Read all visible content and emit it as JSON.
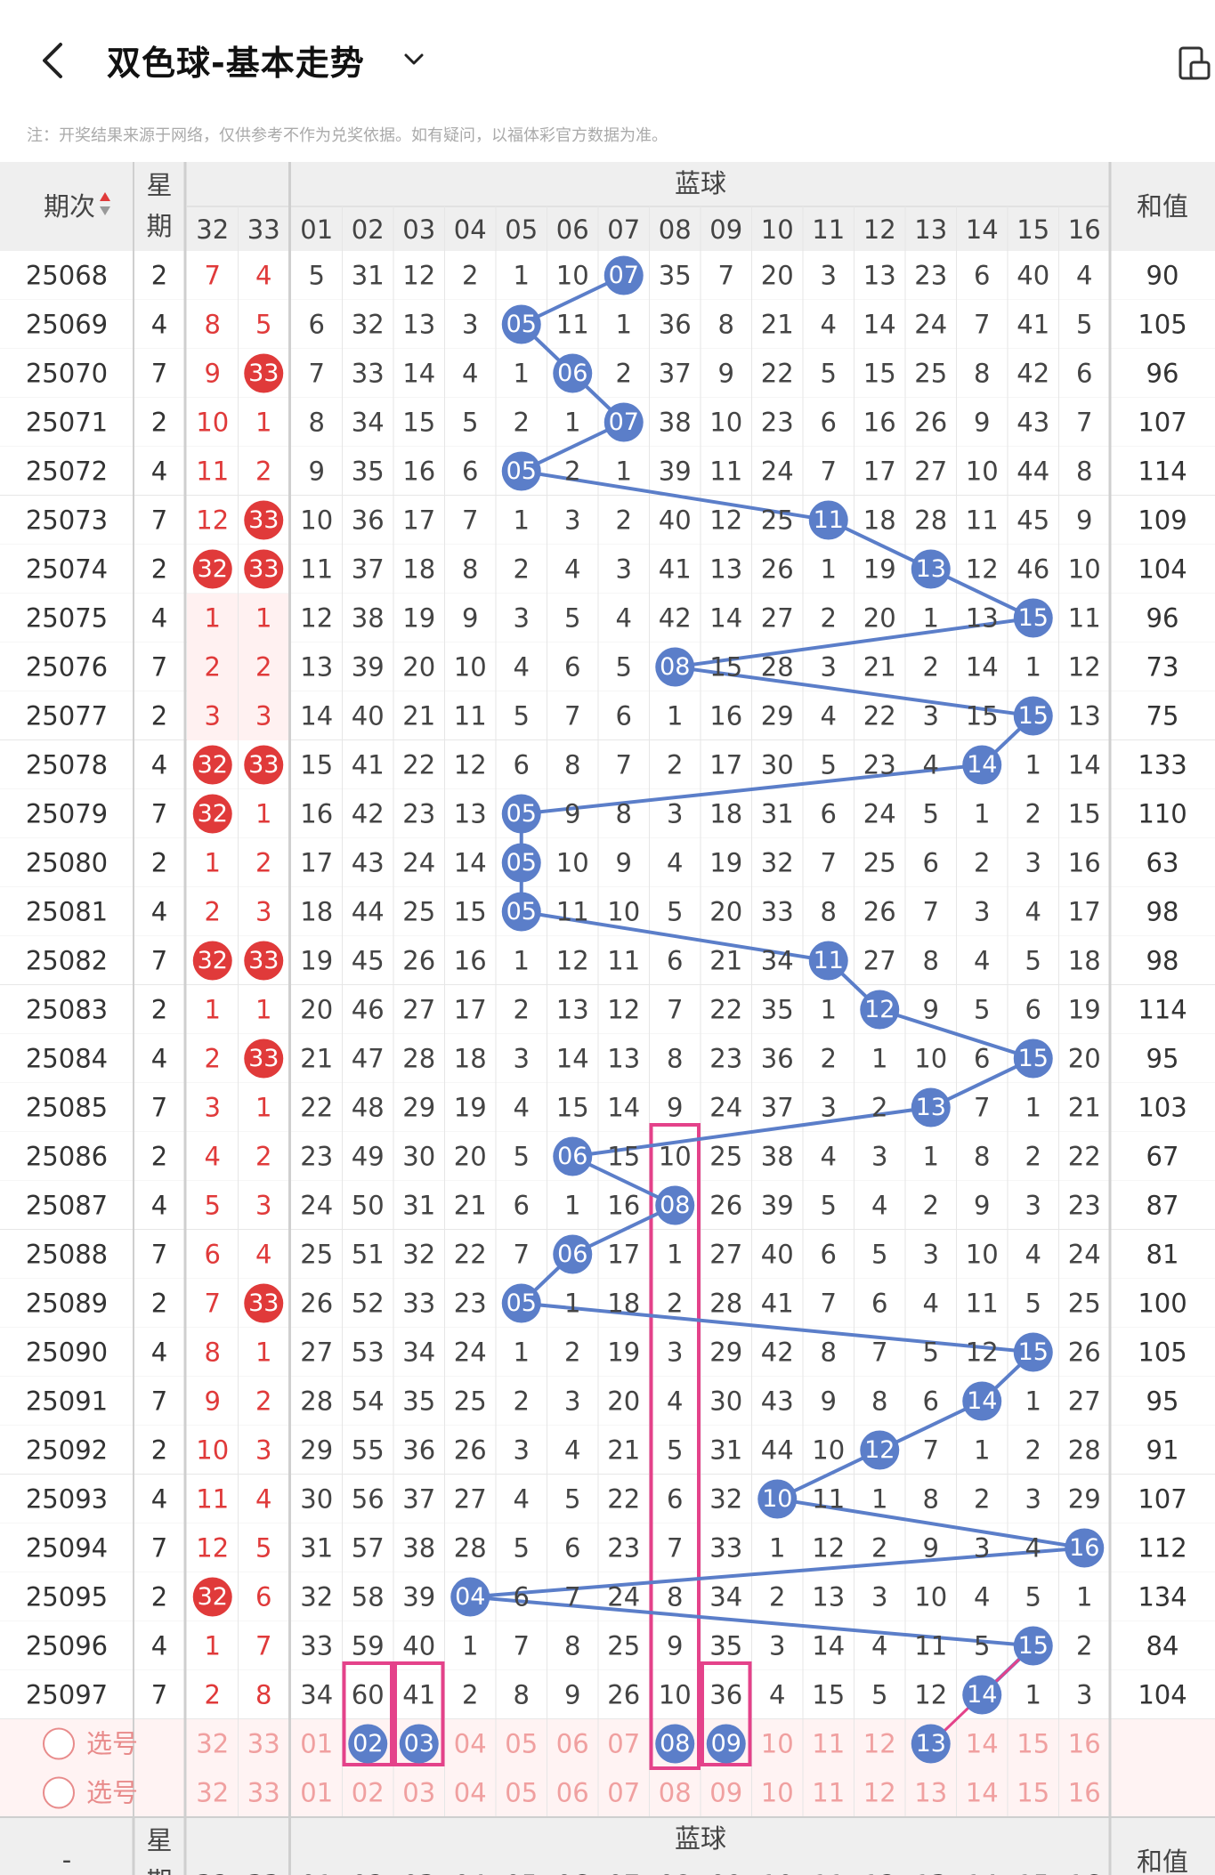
{
  "header": {
    "title": "双色球-基本走势",
    "notice": "注：开奖结果来源于网络，仅供参考不作为兑奖依据。如有疑问，以福体彩官方数据为准。"
  },
  "table": {
    "col_period": "期次",
    "col_weekday": "星期",
    "col_blue": "蓝球",
    "col_sum": "和值",
    "red_cols": [
      "32",
      "33"
    ],
    "blue_cols": [
      "01",
      "02",
      "03",
      "04",
      "05",
      "06",
      "07",
      "08",
      "09",
      "10",
      "11",
      "12",
      "13",
      "14",
      "15",
      "16"
    ],
    "rows": [
      {
        "period": "25068",
        "weekday": "2",
        "r": [
          "7",
          "4"
        ],
        "hr": [
          false,
          false
        ],
        "b": [
          "5",
          "31",
          "12",
          "2",
          "1",
          "10",
          "07",
          "35",
          "7",
          "20",
          "3",
          "13",
          "23",
          "6",
          "40",
          "4"
        ],
        "hit": 7,
        "sum": "90"
      },
      {
        "period": "25069",
        "weekday": "4",
        "r": [
          "8",
          "5"
        ],
        "hr": [
          false,
          false
        ],
        "b": [
          "6",
          "32",
          "13",
          "3",
          "05",
          "11",
          "1",
          "36",
          "8",
          "21",
          "4",
          "14",
          "24",
          "7",
          "41",
          "5"
        ],
        "hit": 5,
        "sum": "105"
      },
      {
        "period": "25070",
        "weekday": "7",
        "r": [
          "9",
          "33"
        ],
        "hr": [
          false,
          true
        ],
        "b": [
          "7",
          "33",
          "14",
          "4",
          "1",
          "06",
          "2",
          "37",
          "9",
          "22",
          "5",
          "15",
          "25",
          "8",
          "42",
          "6"
        ],
        "hit": 6,
        "sum": "96"
      },
      {
        "period": "25071",
        "weekday": "2",
        "r": [
          "10",
          "1"
        ],
        "hr": [
          false,
          false
        ],
        "b": [
          "8",
          "34",
          "15",
          "5",
          "2",
          "1",
          "07",
          "38",
          "10",
          "23",
          "6",
          "16",
          "26",
          "9",
          "43",
          "7"
        ],
        "hit": 7,
        "sum": "107"
      },
      {
        "period": "25072",
        "weekday": "4",
        "r": [
          "11",
          "2"
        ],
        "hr": [
          false,
          false
        ],
        "b": [
          "9",
          "35",
          "16",
          "6",
          "05",
          "2",
          "1",
          "39",
          "11",
          "24",
          "7",
          "17",
          "27",
          "10",
          "44",
          "8"
        ],
        "hit": 5,
        "sum": "114"
      },
      {
        "period": "25073",
        "weekday": "7",
        "r": [
          "12",
          "33"
        ],
        "hr": [
          false,
          true
        ],
        "b": [
          "10",
          "36",
          "17",
          "7",
          "1",
          "3",
          "2",
          "40",
          "12",
          "25",
          "11",
          "18",
          "28",
          "11",
          "45",
          "9"
        ],
        "hit": 11,
        "sum": "109"
      },
      {
        "period": "25074",
        "weekday": "2",
        "r": [
          "32",
          "33"
        ],
        "hr": [
          true,
          true
        ],
        "b": [
          "11",
          "37",
          "18",
          "8",
          "2",
          "4",
          "3",
          "41",
          "13",
          "26",
          "1",
          "19",
          "13",
          "12",
          "46",
          "10"
        ],
        "hit": 13,
        "sum": "104"
      },
      {
        "period": "25075",
        "weekday": "4",
        "r": [
          "1",
          "1"
        ],
        "hr": [
          false,
          false
        ],
        "b": [
          "12",
          "38",
          "19",
          "9",
          "3",
          "5",
          "4",
          "42",
          "14",
          "27",
          "2",
          "20",
          "1",
          "13",
          "15",
          "11"
        ],
        "hit": 15,
        "sum": "96"
      },
      {
        "period": "25076",
        "weekday": "7",
        "r": [
          "2",
          "2"
        ],
        "hr": [
          false,
          false
        ],
        "b": [
          "13",
          "39",
          "20",
          "10",
          "4",
          "6",
          "5",
          "08",
          "15",
          "28",
          "3",
          "21",
          "2",
          "14",
          "1",
          "12"
        ],
        "hit": 8,
        "sum": "73"
      },
      {
        "period": "25077",
        "weekday": "2",
        "r": [
          "3",
          "3"
        ],
        "hr": [
          false,
          false
        ],
        "b": [
          "14",
          "40",
          "21",
          "11",
          "5",
          "7",
          "6",
          "1",
          "16",
          "29",
          "4",
          "22",
          "3",
          "15",
          "15",
          "13"
        ],
        "hit": 15,
        "sum": "75"
      },
      {
        "period": "25078",
        "weekday": "4",
        "r": [
          "32",
          "33"
        ],
        "hr": [
          true,
          true
        ],
        "b": [
          "15",
          "41",
          "22",
          "12",
          "6",
          "8",
          "7",
          "2",
          "17",
          "30",
          "5",
          "23",
          "4",
          "14",
          "1",
          "14"
        ],
        "hit": 14,
        "sum": "133"
      },
      {
        "period": "25079",
        "weekday": "7",
        "r": [
          "32",
          "1"
        ],
        "hr": [
          true,
          false
        ],
        "b": [
          "16",
          "42",
          "23",
          "13",
          "05",
          "9",
          "8",
          "3",
          "18",
          "31",
          "6",
          "24",
          "5",
          "1",
          "2",
          "15"
        ],
        "hit": 5,
        "sum": "110"
      },
      {
        "period": "25080",
        "weekday": "2",
        "r": [
          "1",
          "2"
        ],
        "hr": [
          false,
          false
        ],
        "b": [
          "17",
          "43",
          "24",
          "14",
          "05",
          "10",
          "9",
          "4",
          "19",
          "32",
          "7",
          "25",
          "6",
          "2",
          "3",
          "16"
        ],
        "hit": 5,
        "sum": "63"
      },
      {
        "period": "25081",
        "weekday": "4",
        "r": [
          "2",
          "3"
        ],
        "hr": [
          false,
          false
        ],
        "b": [
          "18",
          "44",
          "25",
          "15",
          "05",
          "11",
          "10",
          "5",
          "20",
          "33",
          "8",
          "26",
          "7",
          "3",
          "4",
          "17"
        ],
        "hit": 5,
        "sum": "98"
      },
      {
        "period": "25082",
        "weekday": "7",
        "r": [
          "32",
          "33"
        ],
        "hr": [
          true,
          true
        ],
        "b": [
          "19",
          "45",
          "26",
          "16",
          "1",
          "12",
          "11",
          "6",
          "21",
          "34",
          "11",
          "27",
          "8",
          "4",
          "5",
          "18"
        ],
        "hit": 11,
        "sum": "98"
      },
      {
        "period": "25083",
        "weekday": "2",
        "r": [
          "1",
          "1"
        ],
        "hr": [
          false,
          false
        ],
        "b": [
          "20",
          "46",
          "27",
          "17",
          "2",
          "13",
          "12",
          "7",
          "22",
          "35",
          "1",
          "12",
          "9",
          "5",
          "6",
          "19"
        ],
        "hit": 12,
        "sum": "114"
      },
      {
        "period": "25084",
        "weekday": "4",
        "r": [
          "2",
          "33"
        ],
        "hr": [
          false,
          true
        ],
        "b": [
          "21",
          "47",
          "28",
          "18",
          "3",
          "14",
          "13",
          "8",
          "23",
          "36",
          "2",
          "1",
          "10",
          "6",
          "15",
          "20"
        ],
        "hit": 15,
        "sum": "95"
      },
      {
        "period": "25085",
        "weekday": "7",
        "r": [
          "3",
          "1"
        ],
        "hr": [
          false,
          false
        ],
        "b": [
          "22",
          "48",
          "29",
          "19",
          "4",
          "15",
          "14",
          "9",
          "24",
          "37",
          "3",
          "2",
          "13",
          "7",
          "1",
          "21"
        ],
        "hit": 13,
        "sum": "103"
      },
      {
        "period": "25086",
        "weekday": "2",
        "r": [
          "4",
          "2"
        ],
        "hr": [
          false,
          false
        ],
        "b": [
          "23",
          "49",
          "30",
          "20",
          "5",
          "06",
          "15",
          "10",
          "25",
          "38",
          "4",
          "3",
          "1",
          "8",
          "2",
          "22"
        ],
        "hit": 6,
        "sum": "67"
      },
      {
        "period": "25087",
        "weekday": "4",
        "r": [
          "5",
          "3"
        ],
        "hr": [
          false,
          false
        ],
        "b": [
          "24",
          "50",
          "31",
          "21",
          "6",
          "1",
          "16",
          "08",
          "26",
          "39",
          "5",
          "4",
          "2",
          "9",
          "3",
          "23"
        ],
        "hit": 8,
        "sum": "87"
      },
      {
        "period": "25088",
        "weekday": "7",
        "r": [
          "6",
          "4"
        ],
        "hr": [
          false,
          false
        ],
        "b": [
          "25",
          "51",
          "32",
          "22",
          "7",
          "06",
          "17",
          "1",
          "27",
          "40",
          "6",
          "5",
          "3",
          "10",
          "4",
          "24"
        ],
        "hit": 6,
        "sum": "81"
      },
      {
        "period": "25089",
        "weekday": "2",
        "r": [
          "7",
          "33"
        ],
        "hr": [
          false,
          true
        ],
        "b": [
          "26",
          "52",
          "33",
          "23",
          "05",
          "1",
          "18",
          "2",
          "28",
          "41",
          "7",
          "6",
          "4",
          "11",
          "5",
          "25"
        ],
        "hit": 5,
        "sum": "100"
      },
      {
        "period": "25090",
        "weekday": "4",
        "r": [
          "8",
          "1"
        ],
        "hr": [
          false,
          false
        ],
        "b": [
          "27",
          "53",
          "34",
          "24",
          "1",
          "2",
          "19",
          "3",
          "29",
          "42",
          "8",
          "7",
          "5",
          "12",
          "15",
          "26"
        ],
        "hit": 15,
        "sum": "105"
      },
      {
        "period": "25091",
        "weekday": "7",
        "r": [
          "9",
          "2"
        ],
        "hr": [
          false,
          false
        ],
        "b": [
          "28",
          "54",
          "35",
          "25",
          "2",
          "3",
          "20",
          "4",
          "30",
          "43",
          "9",
          "8",
          "6",
          "14",
          "1",
          "27"
        ],
        "hit": 14,
        "sum": "95"
      },
      {
        "period": "25092",
        "weekday": "2",
        "r": [
          "10",
          "3"
        ],
        "hr": [
          false,
          false
        ],
        "b": [
          "29",
          "55",
          "36",
          "26",
          "3",
          "4",
          "21",
          "5",
          "31",
          "44",
          "10",
          "12",
          "7",
          "1",
          "2",
          "28"
        ],
        "hit": 12,
        "sum": "91"
      },
      {
        "period": "25093",
        "weekday": "4",
        "r": [
          "11",
          "4"
        ],
        "hr": [
          false,
          false
        ],
        "b": [
          "30",
          "56",
          "37",
          "27",
          "4",
          "5",
          "22",
          "6",
          "32",
          "10",
          "11",
          "1",
          "8",
          "2",
          "3",
          "29"
        ],
        "hit": 10,
        "sum": "107"
      },
      {
        "period": "25094",
        "weekday": "7",
        "r": [
          "12",
          "5"
        ],
        "hr": [
          false,
          false
        ],
        "b": [
          "31",
          "57",
          "38",
          "28",
          "5",
          "6",
          "23",
          "7",
          "33",
          "1",
          "12",
          "2",
          "9",
          "3",
          "4",
          "16"
        ],
        "hit": 16,
        "sum": "112"
      },
      {
        "period": "25095",
        "weekday": "2",
        "r": [
          "32",
          "6"
        ],
        "hr": [
          true,
          false
        ],
        "b": [
          "32",
          "58",
          "39",
          "04",
          "6",
          "7",
          "24",
          "8",
          "34",
          "2",
          "13",
          "3",
          "10",
          "4",
          "5",
          "1"
        ],
        "hit": 4,
        "sum": "134"
      },
      {
        "period": "25096",
        "weekday": "4",
        "r": [
          "1",
          "7"
        ],
        "hr": [
          false,
          false
        ],
        "b": [
          "33",
          "59",
          "40",
          "1",
          "7",
          "8",
          "25",
          "9",
          "35",
          "3",
          "14",
          "4",
          "11",
          "5",
          "15",
          "2"
        ],
        "hit": 15,
        "sum": "84"
      },
      {
        "period": "25097",
        "weekday": "7",
        "r": [
          "2",
          "8"
        ],
        "hr": [
          false,
          false
        ],
        "b": [
          "34",
          "60",
          "41",
          "2",
          "8",
          "9",
          "26",
          "10",
          "36",
          "4",
          "15",
          "5",
          "12",
          "14",
          "1",
          "3"
        ],
        "hit": 14,
        "sum": "104"
      }
    ],
    "picker_label": "选号",
    "picker1_selected": [
      2,
      3,
      8,
      9,
      13
    ],
    "picker_values": [
      "01",
      "02",
      "03",
      "04",
      "05",
      "06",
      "07",
      "08",
      "09",
      "10",
      "11",
      "12",
      "13",
      "14",
      "15",
      "16"
    ],
    "picker_red": [
      "32",
      "33"
    ],
    "footer_col_period": "-",
    "colors": {
      "blue_ball": "#5b7ec9",
      "red_ball": "#e03a3a",
      "line": "#5b7ec9",
      "highlight": "#e4428a",
      "picker_bg": "#fff3f3"
    }
  }
}
